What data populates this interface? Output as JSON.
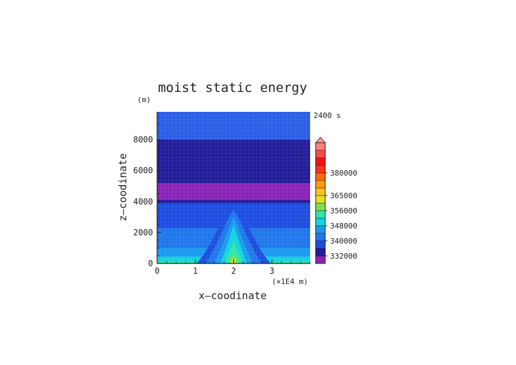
{
  "chart_data": {
    "type": "heatmap",
    "title": "moist static energy",
    "time_label": "2400 s",
    "xlabel": "x—coodinate",
    "ylabel": "z—coodinate",
    "x_unit": "(×1E4 m)",
    "y_unit": "(m)",
    "xlim": [
      0,
      4
    ],
    "ylim": [
      0,
      9800
    ],
    "x_ticks": [
      "0",
      "1",
      "2",
      "3"
    ],
    "x_tick_values": [
      0,
      1,
      2,
      3
    ],
    "y_ticks": [
      "0",
      "2000",
      "4000",
      "6000",
      "8000"
    ],
    "y_tick_values": [
      0,
      2000,
      4000,
      6000,
      8000
    ],
    "horizontal_bands": [
      {
        "z_from": 0,
        "z_to": 150,
        "color": "#2ee6a8"
      },
      {
        "z_from": 150,
        "z_to": 450,
        "color": "#11d4e0"
      },
      {
        "z_from": 450,
        "z_to": 1000,
        "color": "#1a9af0"
      },
      {
        "z_from": 1000,
        "z_to": 2300,
        "color": "#1f76ec"
      },
      {
        "z_from": 2300,
        "z_to": 3900,
        "color": "#1d4ce0"
      },
      {
        "z_from": 3900,
        "z_to": 5200,
        "color": "#221c9a"
      },
      {
        "z_from": 5200,
        "z_to": 5300,
        "color": "#221c9a"
      },
      {
        "z_from": 4100,
        "z_to": 5200,
        "color": "#8a22b8"
      },
      {
        "z_from": 5200,
        "z_to": 8000,
        "color": "#221c9a"
      },
      {
        "z_from": 8000,
        "z_to": 9800,
        "color": "#2a5ee8"
      }
    ],
    "plume": {
      "x_center": 2.0,
      "top_z": 4000
    },
    "colorbar": {
      "ticks": [
        332000,
        340000,
        348000,
        356000,
        365000,
        380000
      ],
      "tick_labels": [
        "332000",
        "340000",
        "348000",
        "356000",
        "365000",
        "380000"
      ],
      "colors": [
        "#8a22b8",
        "#221c9a",
        "#1d4ce0",
        "#1f76ec",
        "#1a9af0",
        "#11d4e0",
        "#2ee6a8",
        "#7ee04a",
        "#e6e020",
        "#ffc020",
        "#ff9a14",
        "#ff6a10",
        "#ff3020",
        "#ff1010",
        "#ff4a4a",
        "#ff8080"
      ]
    }
  }
}
